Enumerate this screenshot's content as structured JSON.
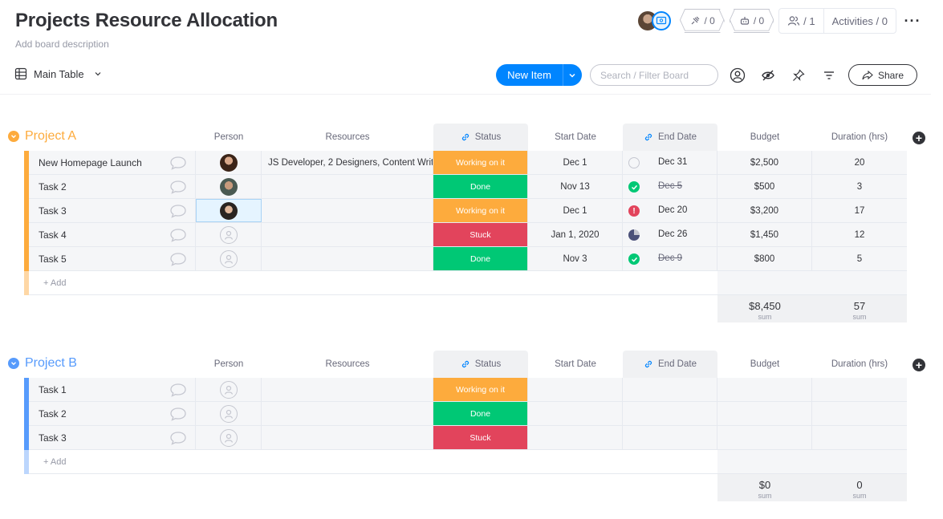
{
  "board": {
    "title": "Projects Resource Allocation",
    "description": "Add board description"
  },
  "header": {
    "integrations_count": "/ 0",
    "automations_count": "/ 0",
    "members_count": "/ 1",
    "activities_label": "Activities / 0"
  },
  "toolbar": {
    "view_label": "Main Table",
    "new_item_label": "New Item",
    "search_placeholder": "Search / Filter Board",
    "share_label": "Share"
  },
  "columns": {
    "person": "Person",
    "resources": "Resources",
    "status": "Status",
    "start_date": "Start Date",
    "end_date": "End Date",
    "budget": "Budget",
    "duration": "Duration (hrs)"
  },
  "colors": {
    "working": "#fdab3d",
    "done": "#00c875",
    "stuck": "#e2445c",
    "group_a": "#fdab3d",
    "group_b": "#579bfc",
    "accent": "#0085ff"
  },
  "groups": [
    {
      "name": "Project A",
      "add_label": "+ Add",
      "sum_budget": "$8,450",
      "sum_duration": "57",
      "sum_label": "sum",
      "rows": [
        {
          "name": "New Homepage Launch",
          "person": "photo-1",
          "resources": "JS Developer, 2 Designers, Content Writ…",
          "status": "Working on it",
          "status_key": "working",
          "start": "Dec 1",
          "end": "Dec 31",
          "end_icon": "empty-circle-icon",
          "end_strike": false,
          "budget": "$2,500",
          "duration": "20"
        },
        {
          "name": "Task 2",
          "person": "photo-2",
          "resources": "",
          "status": "Done",
          "status_key": "done",
          "start": "Nov 13",
          "end": "Dec 5",
          "end_icon": "check-circle-icon",
          "end_strike": true,
          "budget": "$500",
          "duration": "3"
        },
        {
          "name": "Task 3",
          "person": "photo-3",
          "resources": "",
          "status": "Working on it",
          "status_key": "working",
          "start": "Dec 1",
          "end": "Dec 20",
          "end_icon": "alert-circle-icon",
          "end_strike": false,
          "budget": "$3,200",
          "duration": "17"
        },
        {
          "name": "Task 4",
          "person": "empty",
          "resources": "",
          "status": "Stuck",
          "status_key": "stuck",
          "start": "Jan 1, 2020",
          "end": "Dec 26",
          "end_icon": "progress-circle-icon",
          "end_strike": false,
          "budget": "$1,450",
          "duration": "12"
        },
        {
          "name": "Task 5",
          "person": "empty",
          "resources": "",
          "status": "Done",
          "status_key": "done",
          "start": "Nov 3",
          "end": "Dec 9",
          "end_icon": "check-circle-icon",
          "end_strike": true,
          "budget": "$800",
          "duration": "5"
        }
      ]
    },
    {
      "name": "Project B",
      "add_label": "+ Add",
      "sum_budget": "$0",
      "sum_duration": "0",
      "sum_label": "sum",
      "rows": [
        {
          "name": "Task 1",
          "person": "empty",
          "resources": "",
          "status": "Working on it",
          "status_key": "working",
          "start": "",
          "end": "",
          "end_icon": "",
          "end_strike": false,
          "budget": "",
          "duration": ""
        },
        {
          "name": "Task 2",
          "person": "empty",
          "resources": "",
          "status": "Done",
          "status_key": "done",
          "start": "",
          "end": "",
          "end_icon": "",
          "end_strike": false,
          "budget": "",
          "duration": ""
        },
        {
          "name": "Task 3",
          "person": "empty",
          "resources": "",
          "status": "Stuck",
          "status_key": "stuck",
          "start": "",
          "end": "",
          "end_icon": "",
          "end_strike": false,
          "budget": "",
          "duration": ""
        }
      ]
    }
  ]
}
